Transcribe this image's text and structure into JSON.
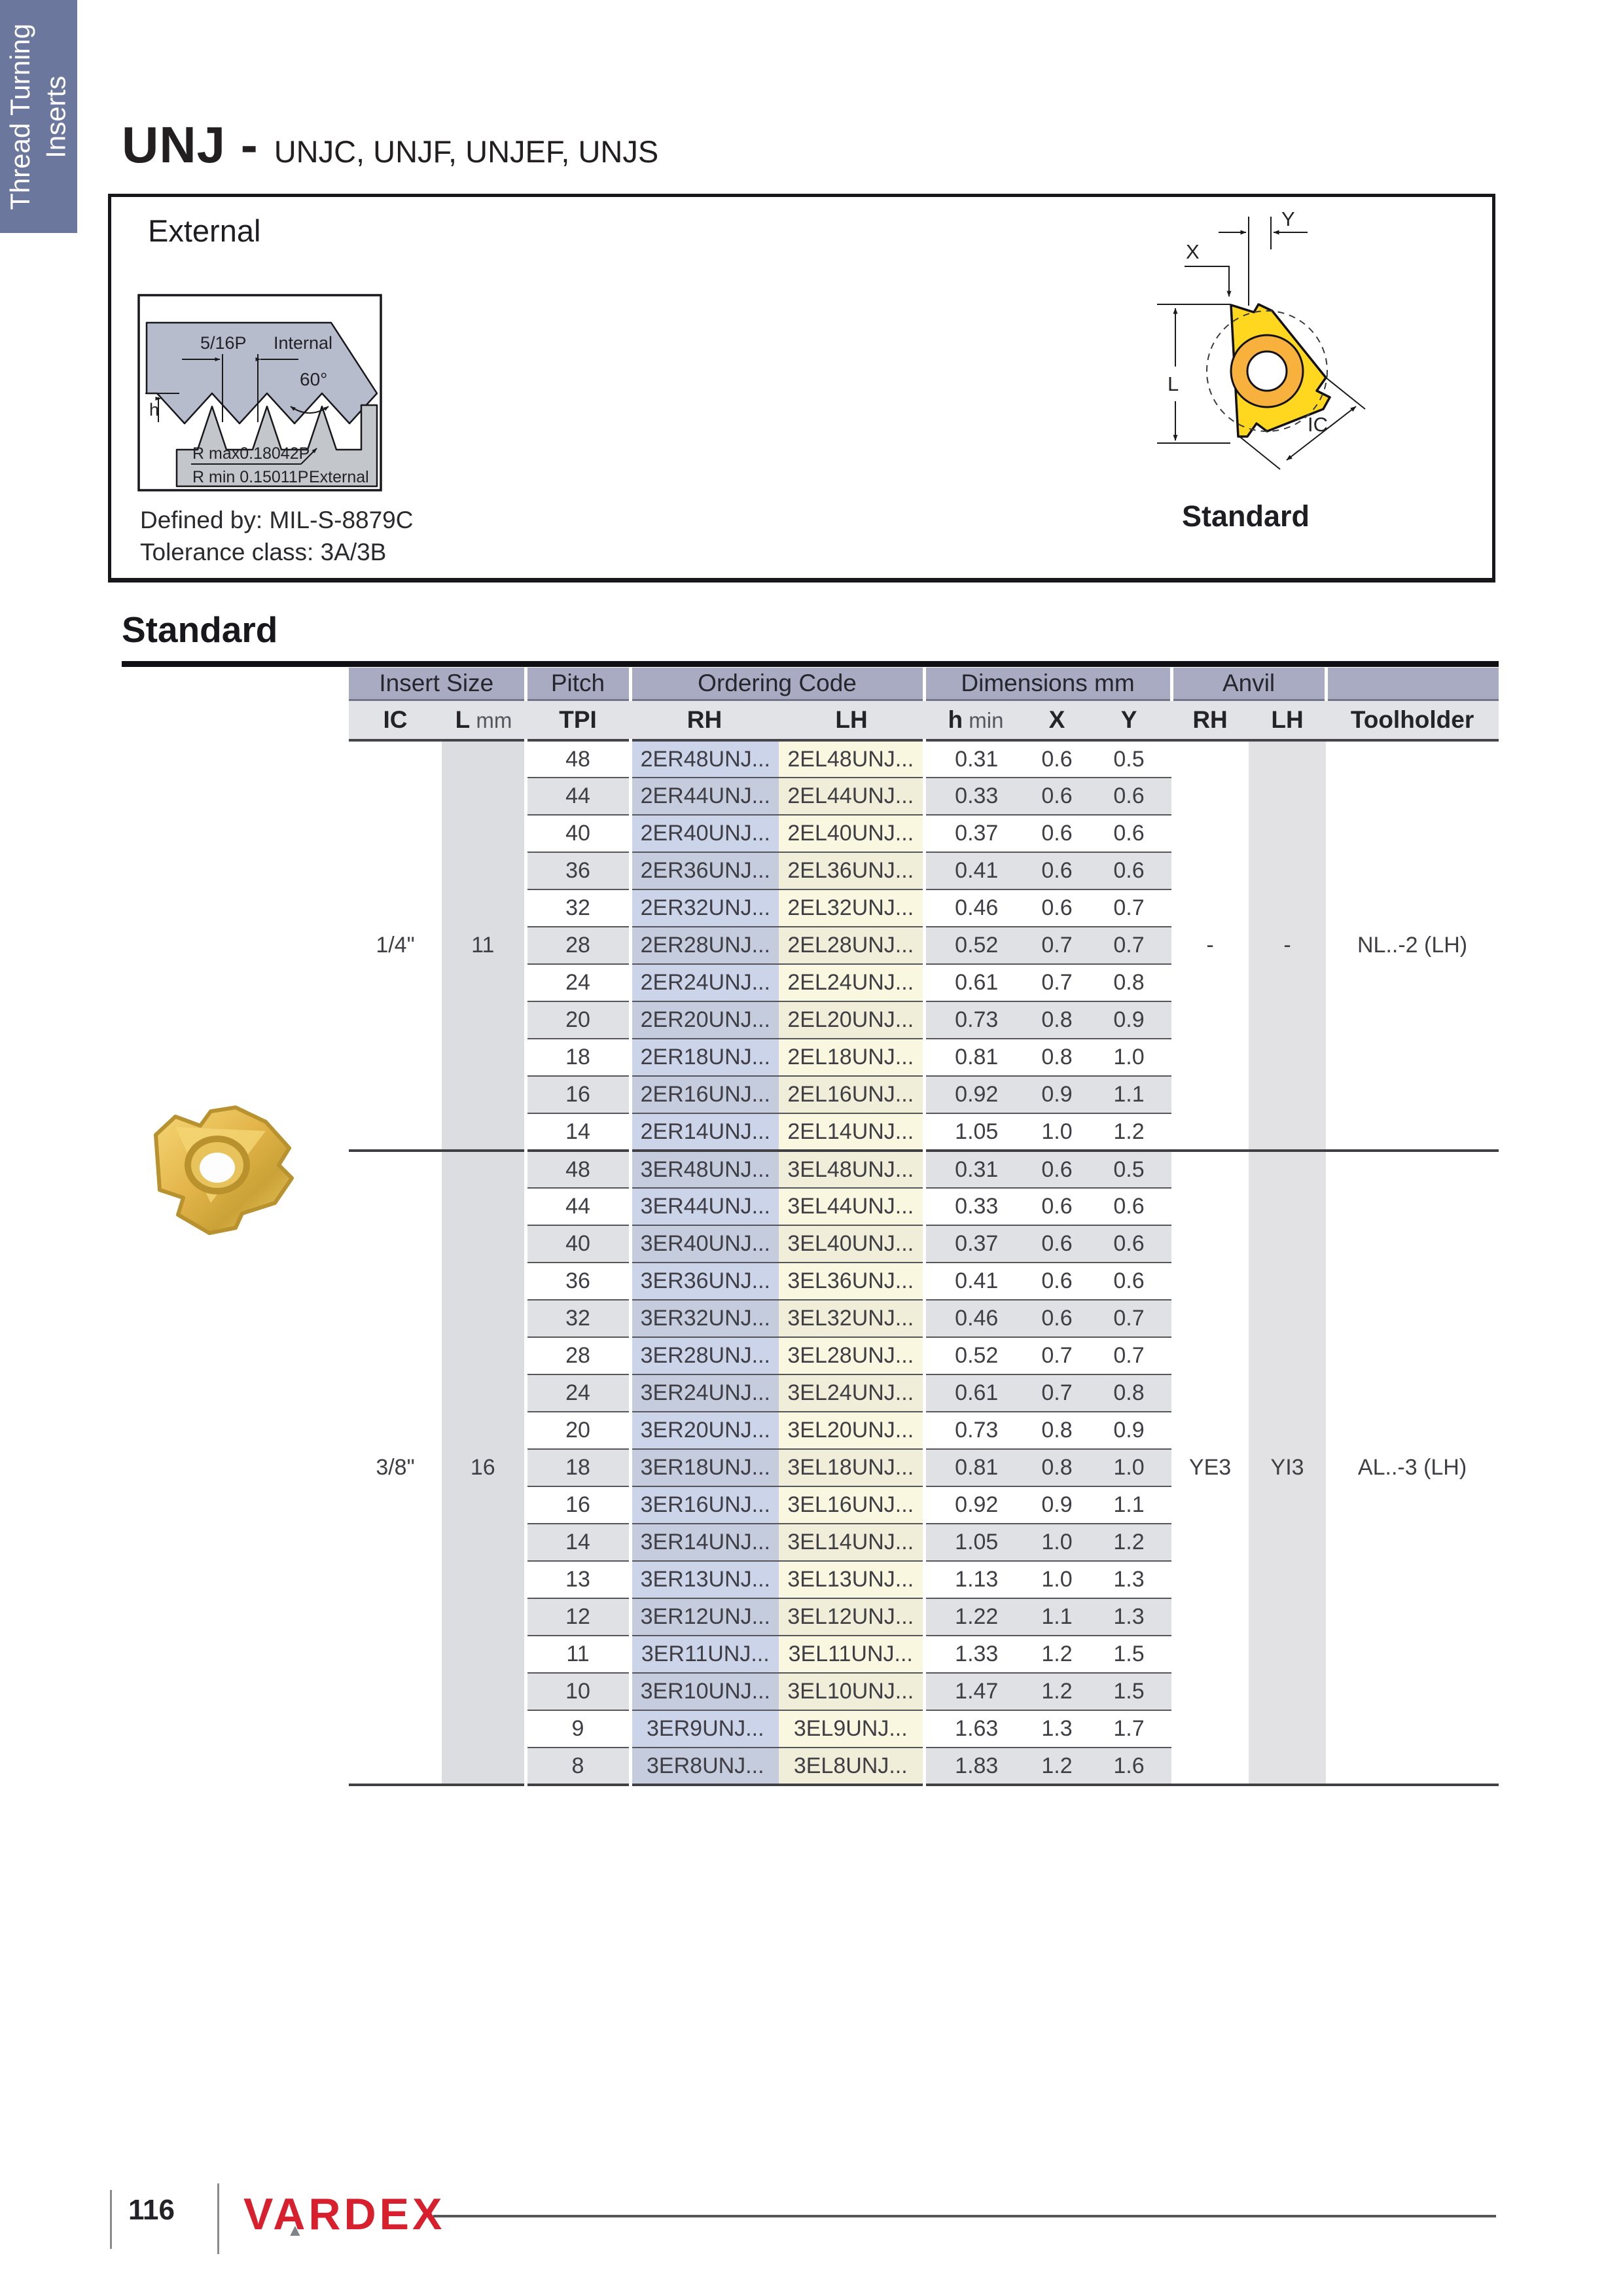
{
  "sidebar": {
    "label_line1": "Thread Turning",
    "label_line2": "Inserts"
  },
  "header": {
    "title": "UNJ -",
    "subtitle": "UNJC, UNJF, UNJEF, UNJS"
  },
  "external_box": {
    "title": "External",
    "defined_by": "Defined by: MIL-S-8879C",
    "tolerance": "Tolerance class: 3A/3B",
    "thread_diagram": {
      "pitch_label": "5/16P",
      "internal_label": "Internal",
      "angle_label": "60°",
      "h_label": "h",
      "rmax_label": "R max0.18042P",
      "rmin_label": "R min 0.15011P",
      "external_label": "External"
    },
    "insert_diagram": {
      "x_label": "X",
      "y_label": "Y",
      "l_label": "L",
      "ic_label": "IC",
      "caption": "Standard"
    }
  },
  "section": {
    "heading": "Standard"
  },
  "table": {
    "group_headers": [
      {
        "label": "Insert Size",
        "span": 2
      },
      {
        "label": "Pitch",
        "span": 1
      },
      {
        "label": "Ordering Code",
        "span": 2
      },
      {
        "label": "Dimensions mm",
        "span": 3
      },
      {
        "label": "Anvil",
        "span": 2
      },
      {
        "label": "",
        "span": 1
      }
    ],
    "columns": [
      {
        "b": "IC"
      },
      {
        "b": "L",
        "r": "mm"
      },
      {
        "b": "TPI"
      },
      {
        "b": "RH"
      },
      {
        "b": "LH"
      },
      {
        "b": "h",
        "r": "min"
      },
      {
        "b": "X"
      },
      {
        "b": "Y"
      },
      {
        "b": "RH"
      },
      {
        "b": "LH"
      },
      {
        "b": "Toolholder"
      }
    ],
    "sections": [
      {
        "ic": "1/4\"",
        "l_mm": "11",
        "anvil_rh": "-",
        "anvil_lh": "-",
        "toolholder": "NL..-2 (LH)",
        "rows": [
          [
            "48",
            "2ER48UNJ...",
            "2EL48UNJ...",
            "0.31",
            "0.6",
            "0.5"
          ],
          [
            "44",
            "2ER44UNJ...",
            "2EL44UNJ...",
            "0.33",
            "0.6",
            "0.6"
          ],
          [
            "40",
            "2ER40UNJ...",
            "2EL40UNJ...",
            "0.37",
            "0.6",
            "0.6"
          ],
          [
            "36",
            "2ER36UNJ...",
            "2EL36UNJ...",
            "0.41",
            "0.6",
            "0.6"
          ],
          [
            "32",
            "2ER32UNJ...",
            "2EL32UNJ...",
            "0.46",
            "0.6",
            "0.7"
          ],
          [
            "28",
            "2ER28UNJ...",
            "2EL28UNJ...",
            "0.52",
            "0.7",
            "0.7"
          ],
          [
            "24",
            "2ER24UNJ...",
            "2EL24UNJ...",
            "0.61",
            "0.7",
            "0.8"
          ],
          [
            "20",
            "2ER20UNJ...",
            "2EL20UNJ...",
            "0.73",
            "0.8",
            "0.9"
          ],
          [
            "18",
            "2ER18UNJ...",
            "2EL18UNJ...",
            "0.81",
            "0.8",
            "1.0"
          ],
          [
            "16",
            "2ER16UNJ...",
            "2EL16UNJ...",
            "0.92",
            "0.9",
            "1.1"
          ],
          [
            "14",
            "2ER14UNJ...",
            "2EL14UNJ...",
            "1.05",
            "1.0",
            "1.2"
          ]
        ]
      },
      {
        "ic": "3/8\"",
        "l_mm": "16",
        "anvil_rh": "YE3",
        "anvil_lh": "YI3",
        "toolholder": "AL..-3 (LH)",
        "rows": [
          [
            "48",
            "3ER48UNJ...",
            "3EL48UNJ...",
            "0.31",
            "0.6",
            "0.5"
          ],
          [
            "44",
            "3ER44UNJ...",
            "3EL44UNJ...",
            "0.33",
            "0.6",
            "0.6"
          ],
          [
            "40",
            "3ER40UNJ...",
            "3EL40UNJ...",
            "0.37",
            "0.6",
            "0.6"
          ],
          [
            "36",
            "3ER36UNJ...",
            "3EL36UNJ...",
            "0.41",
            "0.6",
            "0.6"
          ],
          [
            "32",
            "3ER32UNJ...",
            "3EL32UNJ...",
            "0.46",
            "0.6",
            "0.7"
          ],
          [
            "28",
            "3ER28UNJ...",
            "3EL28UNJ...",
            "0.52",
            "0.7",
            "0.7"
          ],
          [
            "24",
            "3ER24UNJ...",
            "3EL24UNJ...",
            "0.61",
            "0.7",
            "0.8"
          ],
          [
            "20",
            "3ER20UNJ...",
            "3EL20UNJ...",
            "0.73",
            "0.8",
            "0.9"
          ],
          [
            "18",
            "3ER18UNJ...",
            "3EL18UNJ...",
            "0.81",
            "0.8",
            "1.0"
          ],
          [
            "16",
            "3ER16UNJ...",
            "3EL16UNJ...",
            "0.92",
            "0.9",
            "1.1"
          ],
          [
            "14",
            "3ER14UNJ...",
            "3EL14UNJ...",
            "1.05",
            "1.0",
            "1.2"
          ],
          [
            "13",
            "3ER13UNJ...",
            "3EL13UNJ...",
            "1.13",
            "1.0",
            "1.3"
          ],
          [
            "12",
            "3ER12UNJ...",
            "3EL12UNJ...",
            "1.22",
            "1.1",
            "1.3"
          ],
          [
            "11",
            "3ER11UNJ...",
            "3EL11UNJ...",
            "1.33",
            "1.2",
            "1.5"
          ],
          [
            "10",
            "3ER10UNJ...",
            "3EL10UNJ...",
            "1.47",
            "1.2",
            "1.5"
          ],
          [
            "9",
            "3ER9UNJ...",
            "3EL9UNJ...",
            "1.63",
            "1.3",
            "1.7"
          ],
          [
            "8",
            "3ER8UNJ...",
            "3EL8UNJ...",
            "1.83",
            "1.2",
            "1.6"
          ]
        ]
      }
    ]
  },
  "footer": {
    "page_number": "116",
    "brand": "VARDEX"
  },
  "colors": {
    "tab_bg": "#6b779c",
    "header_group_bg": "#a8abc1",
    "label_row_bg": "#e2e3e6",
    "rh_col": "#ccd4ea",
    "lh_col": "#faf7e1",
    "stripe_gray": "#e0e1e4",
    "logo_red": "#d81f2e",
    "insert_yellow": "#ffd71f",
    "ring_orange": "#f8b13c",
    "internal_fill": "#b7bccd",
    "external_fill": "#c3c7cb"
  }
}
